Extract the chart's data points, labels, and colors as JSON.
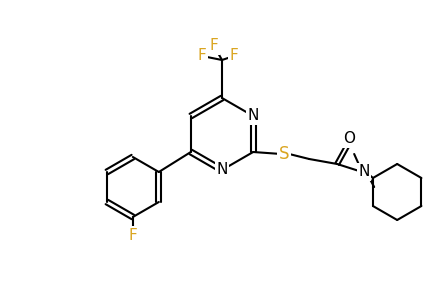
{
  "bg_color": "#ffffff",
  "bond_color": "#000000",
  "atom_colors": {
    "F": "#daa520",
    "N": "#000000",
    "O": "#000000",
    "S": "#daa520",
    "C": "#000000"
  },
  "line_width": 1.5,
  "font_size": 11
}
